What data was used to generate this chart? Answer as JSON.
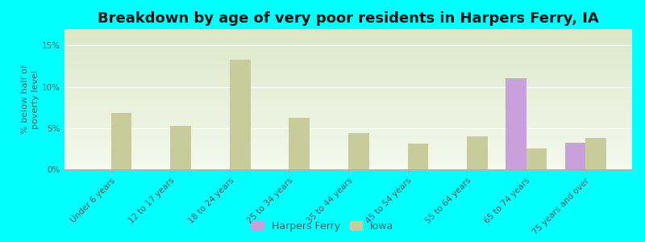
{
  "title": "Breakdown by age of very poor residents in Harpers Ferry, IA",
  "ylabel": "% below half of\npoverty level",
  "categories": [
    "Under 6 years",
    "12 to 17 years",
    "18 to 24 years",
    "25 to 34 years",
    "35 to 44 years",
    "45 to 54 years",
    "55 to 64 years",
    "65 to 74 years",
    "75 years and over"
  ],
  "harpers_ferry": [
    0,
    0,
    0,
    0,
    0,
    0,
    0,
    11.0,
    3.2
  ],
  "iowa": [
    6.8,
    5.3,
    13.3,
    6.3,
    4.4,
    3.1,
    4.0,
    2.5,
    3.8
  ],
  "harpers_color": "#c9a0dc",
  "iowa_color": "#c8cc9a",
  "background_color": "#00ffff",
  "plot_bg_top": "#dce8c8",
  "plot_bg_bottom": "#f5f8ee",
  "ylim": [
    0,
    17
  ],
  "yticks": [
    0,
    5,
    10,
    15
  ],
  "ytick_labels": [
    "0%",
    "5%",
    "10%",
    "15%"
  ],
  "bar_width": 0.35,
  "title_fontsize": 13,
  "tick_fontsize": 7.5,
  "legend_fontsize": 9,
  "ylabel_fontsize": 8
}
